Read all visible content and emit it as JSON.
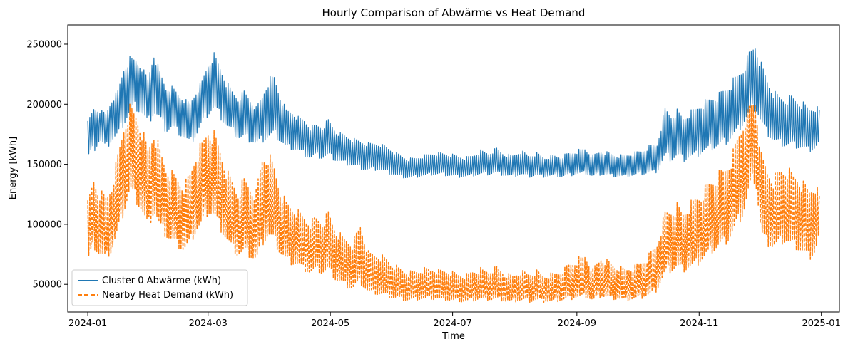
{
  "chart_data": {
    "type": "line",
    "title": "Hourly Comparison of Abwärme vs Heat Demand",
    "xlabel": "Time",
    "ylabel": "Energy [kWh]",
    "x_axis": "date",
    "x_range": [
      "2023-12-22",
      "2025-01-10"
    ],
    "xticks": [
      "2024-01",
      "2024-03",
      "2024-05",
      "2024-07",
      "2024-09",
      "2024-11",
      "2025-01"
    ],
    "ylim": [
      27000,
      266000
    ],
    "yticks": [
      50000,
      100000,
      150000,
      200000,
      250000
    ],
    "grid": false,
    "legend_position": "lower-left",
    "series": [
      {
        "name": "Cluster 0 Abwärme (kWh)",
        "color": "#1f77b4",
        "style": "solid",
        "x": [
          "2024-01-01",
          "2024-01-04",
          "2024-01-07",
          "2024-01-10",
          "2024-01-13",
          "2024-01-16",
          "2024-01-19",
          "2024-01-22",
          "2024-01-25",
          "2024-01-28",
          "2024-01-31",
          "2024-02-03",
          "2024-02-06",
          "2024-02-09",
          "2024-02-12",
          "2024-02-15",
          "2024-02-18",
          "2024-02-21",
          "2024-02-24",
          "2024-02-27",
          "2024-03-01",
          "2024-03-04",
          "2024-03-07",
          "2024-03-10",
          "2024-03-13",
          "2024-03-16",
          "2024-03-19",
          "2024-03-22",
          "2024-03-25",
          "2024-03-28",
          "2024-03-31",
          "2024-04-03",
          "2024-04-06",
          "2024-04-09",
          "2024-04-12",
          "2024-04-15",
          "2024-04-18",
          "2024-04-21",
          "2024-04-24",
          "2024-04-27",
          "2024-04-30",
          "2024-05-04",
          "2024-05-08",
          "2024-05-12",
          "2024-05-16",
          "2024-05-20",
          "2024-05-24",
          "2024-05-28",
          "2024-06-01",
          "2024-06-05",
          "2024-06-09",
          "2024-06-13",
          "2024-06-17",
          "2024-06-21",
          "2024-06-25",
          "2024-06-29",
          "2024-07-03",
          "2024-07-07",
          "2024-07-11",
          "2024-07-15",
          "2024-07-19",
          "2024-07-23",
          "2024-07-27",
          "2024-07-31",
          "2024-08-04",
          "2024-08-08",
          "2024-08-12",
          "2024-08-16",
          "2024-08-20",
          "2024-08-24",
          "2024-08-28",
          "2024-09-01",
          "2024-09-05",
          "2024-09-09",
          "2024-09-13",
          "2024-09-17",
          "2024-09-21",
          "2024-09-25",
          "2024-09-29",
          "2024-10-03",
          "2024-10-07",
          "2024-10-11",
          "2024-10-15",
          "2024-10-18",
          "2024-10-21",
          "2024-10-24",
          "2024-10-27",
          "2024-10-30",
          "2024-11-02",
          "2024-11-05",
          "2024-11-08",
          "2024-11-11",
          "2024-11-14",
          "2024-11-17",
          "2024-11-20",
          "2024-11-23",
          "2024-11-26",
          "2024-11-29",
          "2024-12-02",
          "2024-12-05",
          "2024-12-08",
          "2024-12-11",
          "2024-12-14",
          "2024-12-17",
          "2024-12-20",
          "2024-12-23",
          "2024-12-26",
          "2024-12-29",
          "2024-12-31"
        ],
        "y": [
          168000,
          182000,
          185000,
          180000,
          190000,
          195000,
          208000,
          218000,
          222000,
          215000,
          205000,
          222000,
          210000,
          198000,
          200000,
          195000,
          190000,
          185000,
          195000,
          205000,
          215000,
          220000,
          212000,
          200000,
          195000,
          190000,
          192000,
          188000,
          183000,
          190000,
          195000,
          198000,
          188000,
          180000,
          178000,
          175000,
          172000,
          168000,
          170000,
          168000,
          172000,
          165000,
          162000,
          160000,
          158000,
          156000,
          158000,
          155000,
          152000,
          148000,
          146000,
          147000,
          148000,
          149000,
          150000,
          149000,
          148000,
          147000,
          148000,
          150000,
          150000,
          152000,
          149000,
          148000,
          150000,
          148000,
          149000,
          147000,
          148000,
          147000,
          149000,
          150000,
          151000,
          148000,
          150000,
          149000,
          148000,
          148000,
          149000,
          150000,
          152000,
          154000,
          175000,
          172000,
          175000,
          172000,
          174000,
          175000,
          178000,
          180000,
          183000,
          185000,
          188000,
          192000,
          198000,
          205000,
          215000,
          222000,
          205000,
          195000,
          188000,
          185000,
          182000,
          183000,
          180000,
          178000,
          176000,
          178000,
          177000
        ],
        "hi": [
          186000,
          198000,
          196000,
          193000,
          205000,
          212000,
          232000,
          240000,
          238000,
          232000,
          222000,
          244000,
          228000,
          215000,
          215000,
          210000,
          205000,
          202000,
          212000,
          220000,
          235000,
          243000,
          232000,
          220000,
          212000,
          206000,
          212000,
          205000,
          198000,
          208000,
          222000,
          225000,
          208000,
          196000,
          195000,
          190000,
          188000,
          182000,
          184000,
          182000,
          188000,
          178000,
          175000,
          172000,
          170000,
          168000,
          168000,
          166000,
          162000,
          158000,
          155000,
          156000,
          158000,
          160000,
          160000,
          159000,
          158000,
          156000,
          158000,
          162000,
          160000,
          164000,
          159000,
          158000,
          162000,
          158000,
          160000,
          156000,
          158000,
          157000,
          160000,
          162000,
          164000,
          158000,
          162000,
          160000,
          158000,
          158000,
          160000,
          162000,
          166000,
          168000,
          198000,
          192000,
          196000,
          190000,
          194000,
          198000,
          202000,
          205000,
          208000,
          210000,
          215000,
          220000,
          226000,
          232000,
          245000,
          252000,
          235000,
          222000,
          212000,
          208000,
          206000,
          208000,
          205000,
          202000,
          198000,
          200000,
          196000
        ],
        "lo": [
          155000,
          160000,
          168000,
          162000,
          168000,
          172000,
          182000,
          190000,
          195000,
          190000,
          182000,
          190000,
          185000,
          176000,
          178000,
          175000,
          170000,
          166000,
          172000,
          182000,
          190000,
          194000,
          188000,
          180000,
          176000,
          170000,
          170000,
          168000,
          165000,
          168000,
          170000,
          172000,
          168000,
          162000,
          162000,
          160000,
          157000,
          154000,
          156000,
          154000,
          156000,
          152000,
          150000,
          148000,
          146000,
          144000,
          145000,
          143000,
          141000,
          139000,
          138000,
          139000,
          140000,
          141000,
          141000,
          140000,
          139000,
          139000,
          140000,
          141000,
          141000,
          142000,
          140000,
          139000,
          141000,
          139000,
          140000,
          139000,
          140000,
          139000,
          140000,
          141000,
          142000,
          139000,
          141000,
          140000,
          139000,
          139000,
          140000,
          141000,
          142000,
          143000,
          155000,
          152000,
          155000,
          152000,
          154000,
          155000,
          158000,
          160000,
          162000,
          164000,
          166000,
          170000,
          175000,
          182000,
          190000,
          195000,
          182000,
          174000,
          168000,
          166000,
          164000,
          165000,
          163000,
          162000,
          160000,
          162000,
          168000
        ]
      },
      {
        "name": "Nearby Heat Demand (kWh)",
        "color": "#ff7f0e",
        "style": "dashed",
        "x": [
          "2024-01-01",
          "2024-01-04",
          "2024-01-07",
          "2024-01-10",
          "2024-01-13",
          "2024-01-16",
          "2024-01-19",
          "2024-01-22",
          "2024-01-25",
          "2024-01-28",
          "2024-01-31",
          "2024-02-03",
          "2024-02-06",
          "2024-02-09",
          "2024-02-12",
          "2024-02-15",
          "2024-02-18",
          "2024-02-21",
          "2024-02-24",
          "2024-02-27",
          "2024-03-01",
          "2024-03-04",
          "2024-03-07",
          "2024-03-10",
          "2024-03-13",
          "2024-03-16",
          "2024-03-19",
          "2024-03-22",
          "2024-03-25",
          "2024-03-28",
          "2024-03-31",
          "2024-04-03",
          "2024-04-06",
          "2024-04-09",
          "2024-04-12",
          "2024-04-15",
          "2024-04-18",
          "2024-04-21",
          "2024-04-24",
          "2024-04-27",
          "2024-04-30",
          "2024-05-04",
          "2024-05-08",
          "2024-05-12",
          "2024-05-16",
          "2024-05-20",
          "2024-05-24",
          "2024-05-28",
          "2024-06-01",
          "2024-06-05",
          "2024-06-09",
          "2024-06-13",
          "2024-06-17",
          "2024-06-21",
          "2024-06-25",
          "2024-06-29",
          "2024-07-03",
          "2024-07-07",
          "2024-07-11",
          "2024-07-15",
          "2024-07-19",
          "2024-07-23",
          "2024-07-27",
          "2024-07-31",
          "2024-08-04",
          "2024-08-08",
          "2024-08-12",
          "2024-08-16",
          "2024-08-20",
          "2024-08-24",
          "2024-08-28",
          "2024-09-01",
          "2024-09-05",
          "2024-09-09",
          "2024-09-13",
          "2024-09-17",
          "2024-09-21",
          "2024-09-25",
          "2024-09-29",
          "2024-10-03",
          "2024-10-07",
          "2024-10-11",
          "2024-10-15",
          "2024-10-18",
          "2024-10-21",
          "2024-10-24",
          "2024-10-27",
          "2024-10-30",
          "2024-11-02",
          "2024-11-05",
          "2024-11-08",
          "2024-11-11",
          "2024-11-14",
          "2024-11-17",
          "2024-11-20",
          "2024-11-23",
          "2024-11-26",
          "2024-11-29",
          "2024-12-02",
          "2024-12-05",
          "2024-12-08",
          "2024-12-11",
          "2024-12-14",
          "2024-12-17",
          "2024-12-20",
          "2024-12-23",
          "2024-12-26",
          "2024-12-29",
          "2024-12-31"
        ],
        "y": [
          88000,
          105000,
          95000,
          92000,
          100000,
          120000,
          140000,
          160000,
          150000,
          140000,
          125000,
          140000,
          125000,
          115000,
          110000,
          105000,
          100000,
          108000,
          120000,
          128000,
          140000,
          135000,
          125000,
          112000,
          102000,
          95000,
          100000,
          95000,
          90000,
          110000,
          118000,
          112000,
          98000,
          90000,
          88000,
          85000,
          80000,
          78000,
          80000,
          78000,
          82000,
          70000,
          66000,
          62000,
          70000,
          58000,
          56000,
          54000,
          50000,
          48000,
          46000,
          47000,
          48000,
          48000,
          47000,
          46000,
          45000,
          44000,
          46000,
          47000,
          46000,
          48000,
          45000,
          44000,
          46000,
          45000,
          46000,
          44000,
          45000,
          46000,
          48000,
          50000,
          52000,
          46000,
          52000,
          50000,
          48000,
          47000,
          48000,
          50000,
          54000,
          60000,
          80000,
          82000,
          85000,
          82000,
          85000,
          88000,
          92000,
          98000,
          102000,
          106000,
          110000,
          118000,
          130000,
          140000,
          165000,
          178000,
          120000,
          110000,
          105000,
          110000,
          112000,
          108000,
          106000,
          100000,
          96000,
          100000,
          110000
        ],
        "hi": [
          120000,
          140000,
          130000,
          125000,
          135000,
          160000,
          185000,
          200000,
          195000,
          182000,
          165000,
          180000,
          165000,
          150000,
          145000,
          140000,
          135000,
          145000,
          162000,
          170000,
          182000,
          178000,
          165000,
          148000,
          138000,
          130000,
          140000,
          135000,
          130000,
          160000,
          162000,
          150000,
          130000,
          120000,
          116000,
          112000,
          108000,
          104000,
          108000,
          104000,
          112000,
          96000,
          90000,
          86000,
          102000,
          78000,
          76000,
          74000,
          68000,
          64000,
          61000,
          62000,
          64000,
          64000,
          63000,
          62000,
          60000,
          58000,
          62000,
          64000,
          62000,
          66000,
          60000,
          58000,
          62000,
          60000,
          62000,
          58000,
          60000,
          62000,
          68000,
          72000,
          76000,
          64000,
          74000,
          70000,
          66000,
          64000,
          66000,
          70000,
          76000,
          86000,
          112000,
          114000,
          118000,
          112000,
          118000,
          124000,
          128000,
          135000,
          140000,
          145000,
          150000,
          158000,
          175000,
          190000,
          200000,
          205000,
          160000,
          148000,
          140000,
          148000,
          150000,
          145000,
          142000,
          136000,
          132000,
          136000,
          125000
        ],
        "lo": [
          68000,
          80000,
          72000,
          70000,
          76000,
          92000,
          108000,
          125000,
          118000,
          108000,
          95000,
          108000,
          95000,
          88000,
          84000,
          80000,
          76000,
          82000,
          92000,
          98000,
          108000,
          104000,
          95000,
          85000,
          78000,
          72000,
          75000,
          72000,
          68000,
          82000,
          88000,
          84000,
          74000,
          68000,
          66000,
          64000,
          60000,
          58000,
          60000,
          58000,
          60000,
          52000,
          48000,
          45000,
          50000,
          42000,
          41000,
          40000,
          38000,
          37000,
          36000,
          37000,
          37000,
          37000,
          36000,
          36000,
          35000,
          35000,
          36000,
          37000,
          36000,
          37000,
          35000,
          35000,
          36000,
          35000,
          36000,
          35000,
          35000,
          36000,
          37000,
          38000,
          39000,
          36000,
          39000,
          38000,
          37000,
          36000,
          37000,
          38000,
          40000,
          44000,
          58000,
          60000,
          62000,
          60000,
          62000,
          64000,
          68000,
          72000,
          76000,
          80000,
          82000,
          88000,
          98000,
          106000,
          125000,
          135000,
          88000,
          82000,
          78000,
          82000,
          84000,
          80000,
          78000,
          74000,
          70000,
          75000,
          90000
        ]
      }
    ]
  }
}
